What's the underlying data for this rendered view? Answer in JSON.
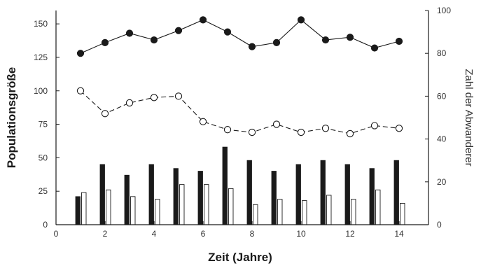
{
  "chart_data": {
    "type": "line",
    "xlabel": "Zeit (Jahre)",
    "ylabel_left": "Populationsgröße",
    "ylabel_right": "Zahl der Abwanderer",
    "xlim": [
      0,
      15.2
    ],
    "ylim_left": [
      0,
      160
    ],
    "ylim_right": [
      0,
      100
    ],
    "x_ticks": [
      "0",
      "2",
      "4",
      "6",
      "8",
      "10",
      "12",
      "14"
    ],
    "y_left_ticks": [
      "0",
      "25",
      "50",
      "75",
      "100",
      "125",
      "150"
    ],
    "y_right_ticks": [
      "0",
      "20",
      "40",
      "60",
      "80",
      "100"
    ],
    "grid": false,
    "legend": "none",
    "x": [
      1,
      2,
      3,
      4,
      5,
      6,
      7,
      8,
      9,
      10,
      11,
      12,
      13,
      14
    ],
    "series": [
      {
        "style": "filled-circle-solid-line",
        "axis": "left",
        "values": [
          128,
          136,
          143,
          138,
          145,
          153,
          144,
          133,
          136,
          153,
          138,
          140,
          132,
          137
        ]
      },
      {
        "style": "open-circle-dashed-line",
        "axis": "left",
        "values": [
          100,
          83,
          91,
          95,
          96,
          77,
          71,
          69,
          75,
          69,
          72,
          68,
          74,
          72
        ]
      },
      {
        "style": "black-bar",
        "axis": "left",
        "values": [
          21,
          45,
          37,
          45,
          42,
          40,
          58,
          48,
          40,
          45,
          48,
          45,
          42,
          48
        ]
      },
      {
        "style": "white-bar",
        "axis": "left",
        "values": [
          24,
          26,
          21,
          19,
          30,
          30,
          27,
          15,
          19,
          18,
          22,
          19,
          26,
          16
        ]
      }
    ],
    "colors": {
      "ink": "#1a1a1a",
      "background": "#ffffff"
    }
  }
}
